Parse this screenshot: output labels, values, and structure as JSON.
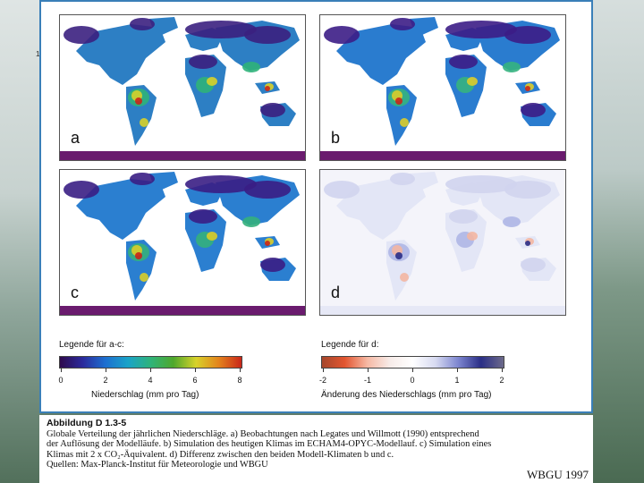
{
  "slide_number": "1",
  "panels": [
    {
      "letter": "a",
      "variant": "obs"
    },
    {
      "letter": "b",
      "variant": "model"
    },
    {
      "letter": "c",
      "variant": "co2"
    },
    {
      "letter": "d",
      "variant": "diff"
    }
  ],
  "legend_ac": {
    "title": "Legende für a-c:",
    "ticks": [
      "0",
      "2",
      "4",
      "6",
      "8"
    ],
    "axis_label": "Niederschlag (mm pro Tag)",
    "colors": [
      "#2e0a4d",
      "#2b2a9c",
      "#1d6fd0",
      "#1aa3c8",
      "#2fb37a",
      "#4fa82c",
      "#d8d22a",
      "#e3831c",
      "#c9261a"
    ]
  },
  "legend_d": {
    "title": "Legende für d:",
    "ticks": [
      "-2",
      "-1",
      "0",
      "1",
      "2"
    ],
    "axis_label": "Änderung des Niederschlags (mm pro Tag)",
    "colors": [
      "#a5472c",
      "#e25530",
      "#f6b9a4",
      "#f7ece9",
      "#ffffff",
      "#d7daf1",
      "#7d86d0",
      "#2a2e86",
      "#6d6a8a"
    ]
  },
  "caption": {
    "title": "Abbildung D 1.3-5",
    "line1": "Globale Verteilung der jährlichen Niederschläge. a) Beobachtungen nach Legates und Willmott (1990) entsprechend",
    "line2": "der Auflösung der Modelläufe. b) Simulation des heutigen Klimas im ECHAM4-OPYC-Modellauf. c) Simulation eines",
    "line3": "Klimas mit 2 x CO₂-Äquivalent. d) Differenz zwischen den beiden Modell-Klimaten b und c.",
    "line4": "Quellen: Max-Planck-Institut für Meteorologie und WBGU"
  },
  "credit": "WBGU 1997"
}
